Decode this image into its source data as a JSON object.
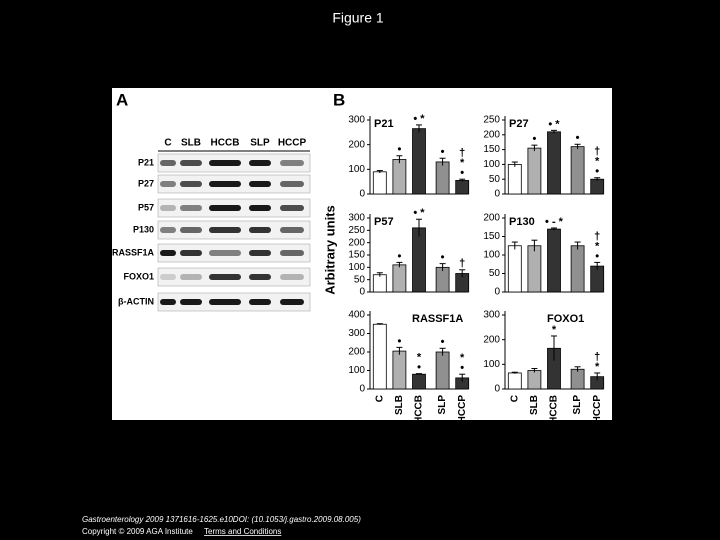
{
  "header": {
    "title": "Figure 1"
  },
  "panel_a": {
    "label": "A",
    "lanes": [
      "C",
      "SLB",
      "HCCB",
      "SLP",
      "HCCP"
    ],
    "blots": [
      "P21",
      "P27",
      "P57",
      "P130",
      "RASSF1A",
      "FOXO1",
      "β-ACTIN"
    ]
  },
  "panel_b": {
    "label": "B",
    "y_label": "Arbitrary units",
    "categories": [
      "C",
      "SLB",
      "HCCB",
      "SLP",
      "HCCP"
    ],
    "colors": [
      "#ffffff",
      "#b0b0b0",
      "#333333",
      "#909090",
      "#333333"
    ],
    "charts": [
      {
        "title": "P21",
        "ylim": [
          0,
          300
        ],
        "yticks": [
          0,
          100,
          200,
          300
        ],
        "values": [
          90,
          140,
          265,
          130,
          55
        ],
        "errors": [
          5,
          15,
          15,
          15,
          5
        ],
        "labels": [
          null,
          [
            "•"
          ],
          [
            "• *"
          ],
          [
            "•"
          ],
          [
            "†",
            "*",
            "•"
          ]
        ]
      },
      {
        "title": "P27",
        "ylim": [
          0,
          250
        ],
        "yticks": [
          0,
          50,
          100,
          150,
          200,
          250
        ],
        "values": [
          100,
          155,
          210,
          160,
          50
        ],
        "errors": [
          8,
          10,
          5,
          8,
          5
        ],
        "labels": [
          null,
          [
            "•"
          ],
          [
            "• *"
          ],
          [
            "•"
          ],
          [
            "†",
            "*",
            "•"
          ]
        ]
      },
      {
        "title": "P57",
        "ylim": [
          0,
          300
        ],
        "yticks": [
          0,
          50,
          100,
          150,
          200,
          250,
          300
        ],
        "values": [
          70,
          110,
          260,
          100,
          75
        ],
        "errors": [
          8,
          10,
          35,
          15,
          15
        ],
        "labels": [
          null,
          [
            "•"
          ],
          [
            "• *"
          ],
          [
            "•"
          ],
          [
            "†"
          ]
        ]
      },
      {
        "title": "P130",
        "ylim": [
          0,
          200
        ],
        "yticks": [
          0,
          50,
          100,
          150,
          200
        ],
        "values": [
          125,
          125,
          170,
          125,
          70
        ],
        "errors": [
          10,
          15,
          3,
          10,
          10
        ],
        "labels": [
          null,
          null,
          [
            "• - *"
          ],
          null,
          [
            "†",
            "*",
            "•"
          ]
        ]
      },
      {
        "title": "RASSF1A",
        "ylim": [
          0,
          400
        ],
        "yticks": [
          0,
          100,
          200,
          300,
          400
        ],
        "values": [
          350,
          205,
          80,
          200,
          60
        ],
        "errors": [
          3,
          20,
          3,
          20,
          20
        ],
        "labels": [
          null,
          [
            "•"
          ],
          [
            "*",
            "•"
          ],
          [
            "•"
          ],
          [
            "*",
            "•"
          ]
        ]
      },
      {
        "title": "FOXO1",
        "ylim": [
          0,
          300
        ],
        "yticks": [
          0,
          100,
          200,
          300
        ],
        "values": [
          65,
          75,
          165,
          80,
          50
        ],
        "errors": [
          3,
          8,
          50,
          10,
          15
        ],
        "labels": [
          null,
          null,
          [
            "*"
          ],
          null,
          [
            "†",
            "*"
          ]
        ]
      }
    ]
  },
  "footer": {
    "citation": "Gastroenterology 2009 1371616-1625.e10DOI: (10.1053/j.gastro.2009.08.005)",
    "copyright": "Copyright © 2009 AGA Institute",
    "link": "Terms and Conditions"
  }
}
